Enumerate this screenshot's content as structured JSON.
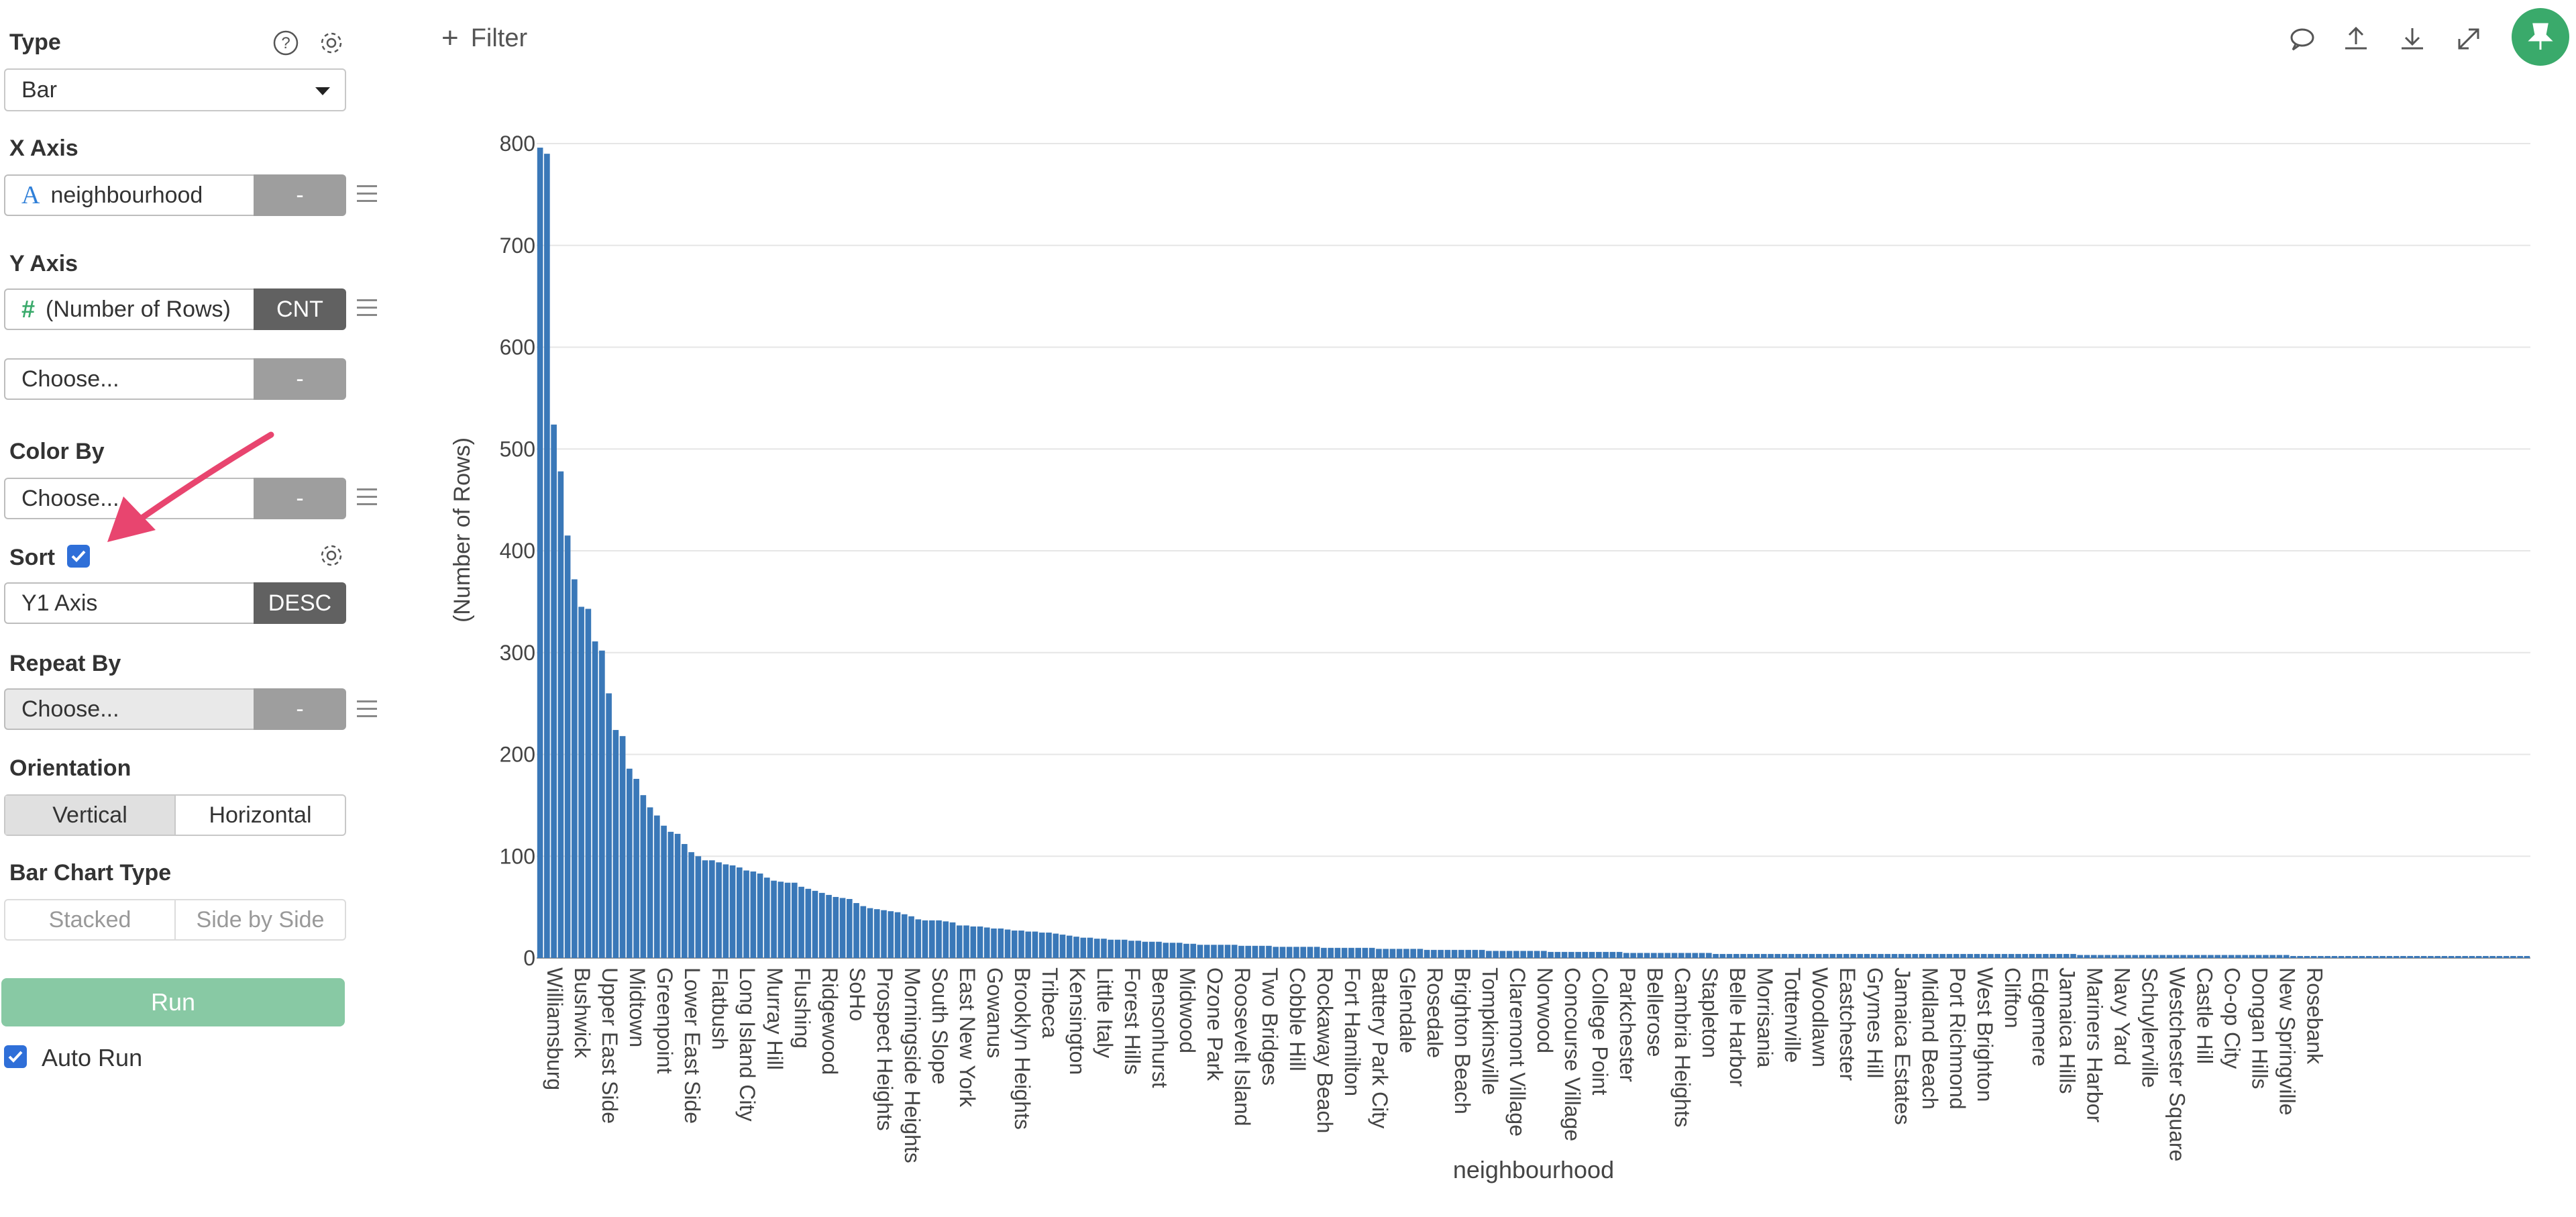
{
  "sidebar": {
    "type_label": "Type",
    "type_value": "Bar",
    "xaxis_label": "X Axis",
    "xaxis_value": "neighbourhood",
    "xaxis_agg": "-",
    "xaxis_type_glyph": "A",
    "yaxis_label": "Y Axis",
    "yaxis_value": "(Number of Rows)",
    "yaxis_agg": "CNT",
    "yaxis_type_glyph": "#",
    "yaxis2_value": "Choose...",
    "yaxis2_agg": "-",
    "colorby_label": "Color By",
    "colorby_value": "Choose...",
    "colorby_agg": "-",
    "sort_label": "Sort",
    "sort_value": "Y1 Axis",
    "sort_order": "DESC",
    "repeatby_label": "Repeat By",
    "repeatby_value": "Choose...",
    "repeatby_agg": "-",
    "orientation_label": "Orientation",
    "orientation_options": [
      "Vertical",
      "Horizontal"
    ],
    "barchart_type_label": "Bar Chart Type",
    "barchart_type_options": [
      "Stacked",
      "Side by Side"
    ],
    "run_label": "Run",
    "autorun_label": "Auto Run"
  },
  "topbar": {
    "filter_plus": "+",
    "filter_label": "Filter"
  },
  "colors": {
    "bar": "#3a78b8",
    "accent_green": "#3aaa6b",
    "run_button": "#88c9a4",
    "annotation_arrow": "#e8456f"
  },
  "chart_data": {
    "type": "bar",
    "xlabel": "neighbourhood",
    "ylabel": "(Number of Rows)",
    "ylim": [
      0,
      800
    ],
    "yticks": [
      0,
      100,
      200,
      300,
      400,
      500,
      600,
      700,
      800
    ],
    "grid": true,
    "visible_tick_labels": [
      "Williamsburg",
      "Bushwick",
      "Upper East Side",
      "Midtown",
      "Greenpoint",
      "Lower East Side",
      "Flatbush",
      "Long Island City",
      "Murray Hill",
      "Flushing",
      "Ridgewood",
      "SoHo",
      "Prospect Heights",
      "Morningside Heights",
      "South Slope",
      "East New York",
      "Gowanus",
      "Brooklyn Heights",
      "Tribeca",
      "Kensington",
      "Little Italy",
      "Forest Hills",
      "Bensonhurst",
      "Midwood",
      "Ozone Park",
      "Roosevelt Island",
      "Two Bridges",
      "Cobble Hill",
      "Rockaway Beach",
      "Fort Hamilton",
      "Battery Park City",
      "Glendale",
      "Rosedale",
      "Brighton Beach",
      "Tompkinsville",
      "Claremont Village",
      "Norwood",
      "Concourse Village",
      "College Point",
      "Parkchester",
      "Bellerose",
      "Cambria Heights",
      "Stapleton",
      "Belle Harbor",
      "Morrisania",
      "Tottenville",
      "Woodlawn",
      "Eastchester",
      "Grymes Hill",
      "Jamaica Estates",
      "Midland Beach",
      "Port Richmond",
      "West Brighton",
      "Clifton",
      "Edgemere",
      "Jamaica Hills",
      "Mariners Harbor",
      "Navy Yard",
      "Schuylerville",
      "Westchester Square",
      "Castle Hill",
      "Co-op City",
      "Dongan Hills",
      "New Springville",
      "Rosebank"
    ],
    "values": [
      796,
      790,
      524,
      478,
      415,
      372,
      345,
      343,
      311,
      302,
      260,
      224,
      218,
      186,
      176,
      160,
      148,
      140,
      130,
      124,
      122,
      112,
      104,
      100,
      96,
      96,
      94,
      92,
      91,
      89,
      86,
      85,
      83,
      79,
      76,
      75,
      74,
      74,
      70,
      68,
      66,
      64,
      62,
      60,
      59,
      58,
      54,
      51,
      49,
      48,
      47,
      46,
      45,
      43,
      41,
      38,
      37,
      37,
      37,
      36,
      35,
      32,
      32,
      31,
      31,
      30,
      29,
      29,
      28,
      27,
      27,
      26,
      26,
      25,
      25,
      24,
      23,
      22,
      21,
      20,
      20,
      19,
      19,
      18,
      18,
      18,
      17,
      17,
      16,
      16,
      16,
      15,
      15,
      15,
      14,
      14,
      13,
      13,
      13,
      13,
      13,
      13,
      12,
      12,
      12,
      12,
      12,
      11,
      11,
      11,
      11,
      11,
      11,
      11,
      10,
      10,
      10,
      10,
      10,
      10,
      10,
      10,
      9,
      9,
      9,
      9,
      9,
      9,
      9,
      8,
      8,
      8,
      8,
      8,
      8,
      8,
      8,
      8,
      7,
      7,
      7,
      7,
      7,
      7,
      7,
      7,
      7,
      6,
      6,
      6,
      6,
      6,
      6,
      6,
      6,
      6,
      6,
      6,
      5,
      5,
      5,
      5,
      5,
      5,
      5,
      5,
      5,
      5,
      5,
      5,
      5,
      4,
      4,
      4,
      4,
      4,
      4,
      4,
      4,
      4,
      4,
      4,
      4,
      4,
      4,
      4,
      4,
      4,
      4,
      4,
      4,
      4,
      4,
      4,
      4,
      4,
      4,
      4,
      4,
      4,
      4,
      4,
      4,
      4,
      4,
      4,
      4,
      4,
      4,
      4,
      4,
      4,
      4,
      4,
      4,
      4,
      4,
      4,
      4,
      4,
      4,
      4,
      4,
      4,
      3,
      3,
      3,
      3,
      3,
      3,
      3,
      3,
      3,
      3,
      3,
      3,
      3,
      3,
      3,
      3,
      3,
      3,
      3,
      3,
      3,
      3,
      3,
      3,
      3,
      3,
      3,
      3,
      3,
      3,
      3,
      2,
      2,
      2,
      2,
      2,
      2,
      2,
      2,
      2,
      2,
      2,
      2,
      2,
      2,
      2,
      2,
      2,
      2,
      2,
      2,
      2,
      2,
      2,
      2,
      2,
      2,
      2,
      2,
      2,
      2,
      2,
      2,
      2,
      2,
      2
    ]
  }
}
